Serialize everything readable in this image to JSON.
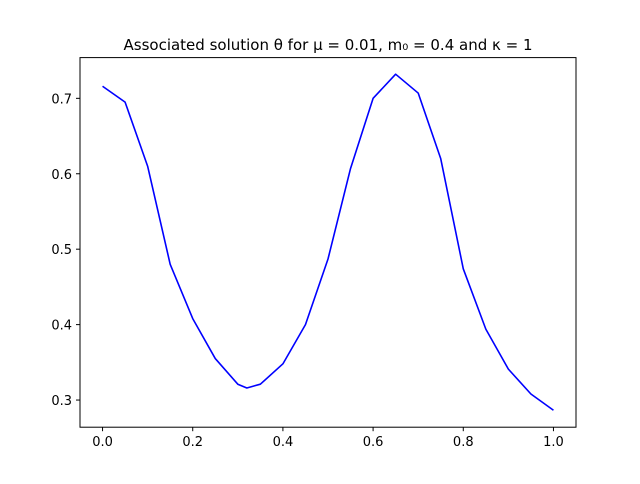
{
  "chart_data": {
    "type": "line",
    "title": "Associated solution θ for μ = 0.01, m₀ = 0.4 and κ = 1",
    "x": [
      0,
      0.05,
      0.1,
      0.15,
      0.2,
      0.25,
      0.3,
      0.32,
      0.35,
      0.4,
      0.45,
      0.5,
      0.55,
      0.6,
      0.65,
      0.7,
      0.75,
      0.8,
      0.85,
      0.9,
      0.95,
      1.0
    ],
    "series": [
      {
        "color": "#0000ff",
        "values": [
          0.716,
          0.695,
          0.61,
          0.48,
          0.408,
          0.355,
          0.321,
          0.316,
          0.321,
          0.348,
          0.4,
          0.487,
          0.607,
          0.7,
          0.732,
          0.707,
          0.62,
          0.474,
          0.394,
          0.341,
          0.308,
          0.2865
        ]
      }
    ],
    "xlim": [
      -0.05,
      1.05
    ],
    "xticks": [
      {
        "value": 0,
        "label": "0.0"
      },
      0.2,
      0.4,
      0.6,
      0.8,
      {
        "value": 1,
        "label": "1.0"
      }
    ],
    "ylim": [
      0.264,
      0.754
    ],
    "yticks": [
      0.3,
      0.4,
      0.5,
      0.6,
      0.7
    ]
  }
}
